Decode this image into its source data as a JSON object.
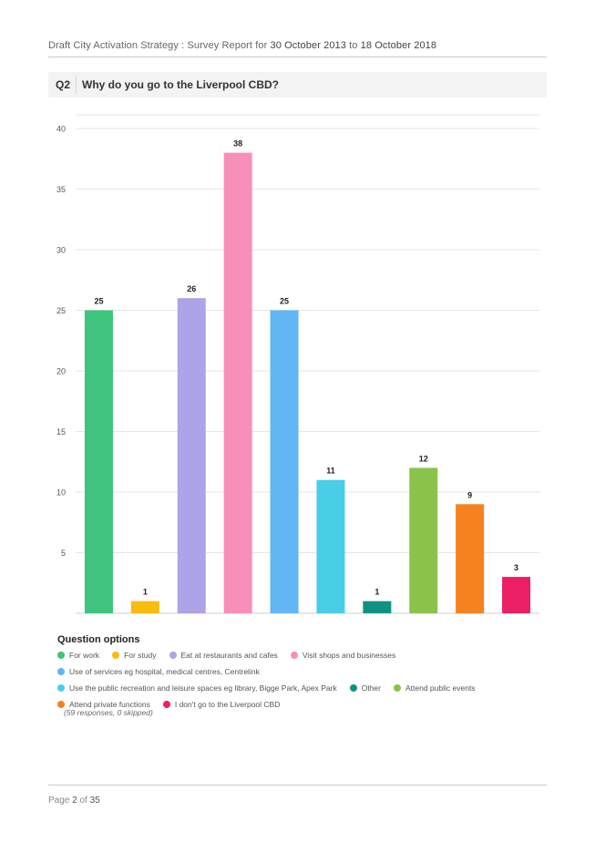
{
  "header": {
    "title": "Draft City Activation Strategy",
    "separator": ":",
    "label": "Survey Report for",
    "date_from": "30 October 2013",
    "to_word": "to",
    "date_to": "18 October 2018"
  },
  "question": {
    "number": "Q2",
    "text": "Why do you go to the Liverpool CBD?"
  },
  "chart_data": {
    "type": "bar",
    "categories": [
      "For work",
      "For study",
      "Eat at restaurants and cafes",
      "Visit shops and businesses",
      "Use of services eg hospital, medical centres, Centrelink",
      "Use the public recreation and leisure spaces eg library, Bigge Park, Apex Park",
      "Other",
      "Attend public events",
      "Attend private functions",
      "I don't go to the Liverpool CBD"
    ],
    "values": [
      25,
      1,
      26,
      38,
      25,
      11,
      1,
      12,
      9,
      3
    ],
    "colors": [
      "#3ec47c",
      "#f8bc0e",
      "#ada3e8",
      "#f78fb8",
      "#62b6f6",
      "#48cee6",
      "#0f9380",
      "#8bc34a",
      "#f5821f",
      "#ec1f66"
    ],
    "yticks": [
      "5",
      "10",
      "15",
      "20",
      "25",
      "30",
      "35",
      "40"
    ],
    "ylim": [
      0,
      40
    ],
    "grid": true,
    "legend_position": "bottom"
  },
  "legend": {
    "title": "Question options",
    "rows": [
      [
        0,
        1,
        2,
        3
      ],
      [
        4
      ],
      [
        5,
        6,
        7
      ],
      [
        8,
        9
      ]
    ]
  },
  "summary": "(59 responses, 0 skipped)",
  "footer": {
    "page_word": "Page",
    "page": "2",
    "of_word": "of",
    "total": "35"
  }
}
